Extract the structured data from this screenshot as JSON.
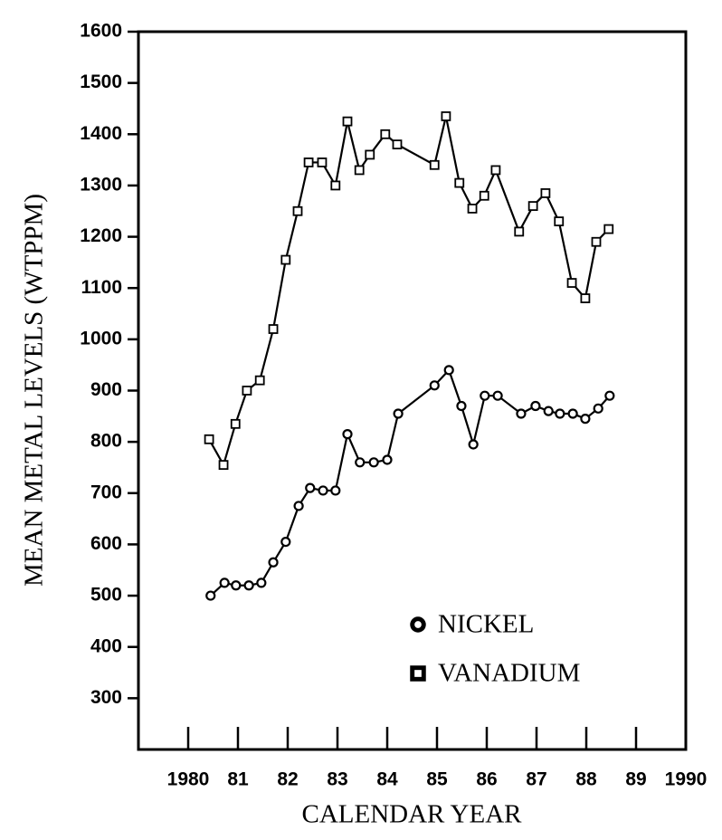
{
  "chart_data": {
    "type": "line",
    "x_label": "CALENDAR YEAR",
    "y_label": "MEAN METAL LEVELS (WTPPM)",
    "xlim": [
      1979,
      1990
    ],
    "ylim": [
      200,
      1600
    ],
    "xticks": [
      1980,
      {
        "value": 1981,
        "label": "81"
      },
      {
        "value": 1982,
        "label": "82"
      },
      {
        "value": 1983,
        "label": "83"
      },
      {
        "value": 1984,
        "label": "84"
      },
      {
        "value": 1985,
        "label": "85"
      },
      {
        "value": 1986,
        "label": "86"
      },
      {
        "value": 1987,
        "label": "87"
      },
      {
        "value": 1988,
        "label": "88"
      },
      {
        "value": 1989,
        "label": "89"
      },
      1990
    ],
    "yticks": [
      300,
      400,
      500,
      600,
      700,
      800,
      900,
      1000,
      1100,
      1200,
      1300,
      1400,
      1500,
      1600
    ],
    "legend": "lower right",
    "series": [
      {
        "name": "NICKEL",
        "color": "#000000",
        "marker": "circle",
        "x": [
          1980.45,
          1980.73,
          1980.96,
          1981.22,
          1981.47,
          1981.71,
          1981.96,
          1982.22,
          1982.45,
          1982.71,
          1982.96,
          1983.2,
          1983.45,
          1983.73,
          1984.0,
          1984.22,
          1984.95,
          1985.24,
          1985.49,
          1985.73,
          1985.96,
          1986.22,
          1986.69,
          1986.98,
          1987.24,
          1987.47,
          1987.73,
          1987.98,
          1988.24,
          1988.47
        ],
        "values": [
          500,
          525,
          520,
          520,
          525,
          565,
          605,
          675,
          710,
          705,
          705,
          815,
          760,
          760,
          765,
          855,
          910,
          940,
          870,
          795,
          890,
          890,
          855,
          870,
          860,
          855,
          855,
          845,
          865,
          890
        ]
      },
      {
        "name": "VANADIUM",
        "color": "#000000",
        "marker": "square",
        "x": [
          1980.42,
          1980.71,
          1980.95,
          1981.18,
          1981.44,
          1981.71,
          1981.96,
          1982.2,
          1982.42,
          1982.69,
          1982.96,
          1983.2,
          1983.44,
          1983.65,
          1983.96,
          1984.2,
          1984.95,
          1985.18,
          1985.45,
          1985.71,
          1985.95,
          1986.18,
          1986.65,
          1986.93,
          1987.18,
          1987.45,
          1987.71,
          1987.98,
          1988.2,
          1988.45
        ],
        "values": [
          805,
          755,
          835,
          900,
          920,
          1020,
          1155,
          1250,
          1345,
          1345,
          1300,
          1425,
          1330,
          1360,
          1400,
          1380,
          1340,
          1435,
          1305,
          1255,
          1280,
          1330,
          1210,
          1260,
          1285,
          1230,
          1110,
          1080,
          1190,
          1215
        ]
      }
    ]
  }
}
